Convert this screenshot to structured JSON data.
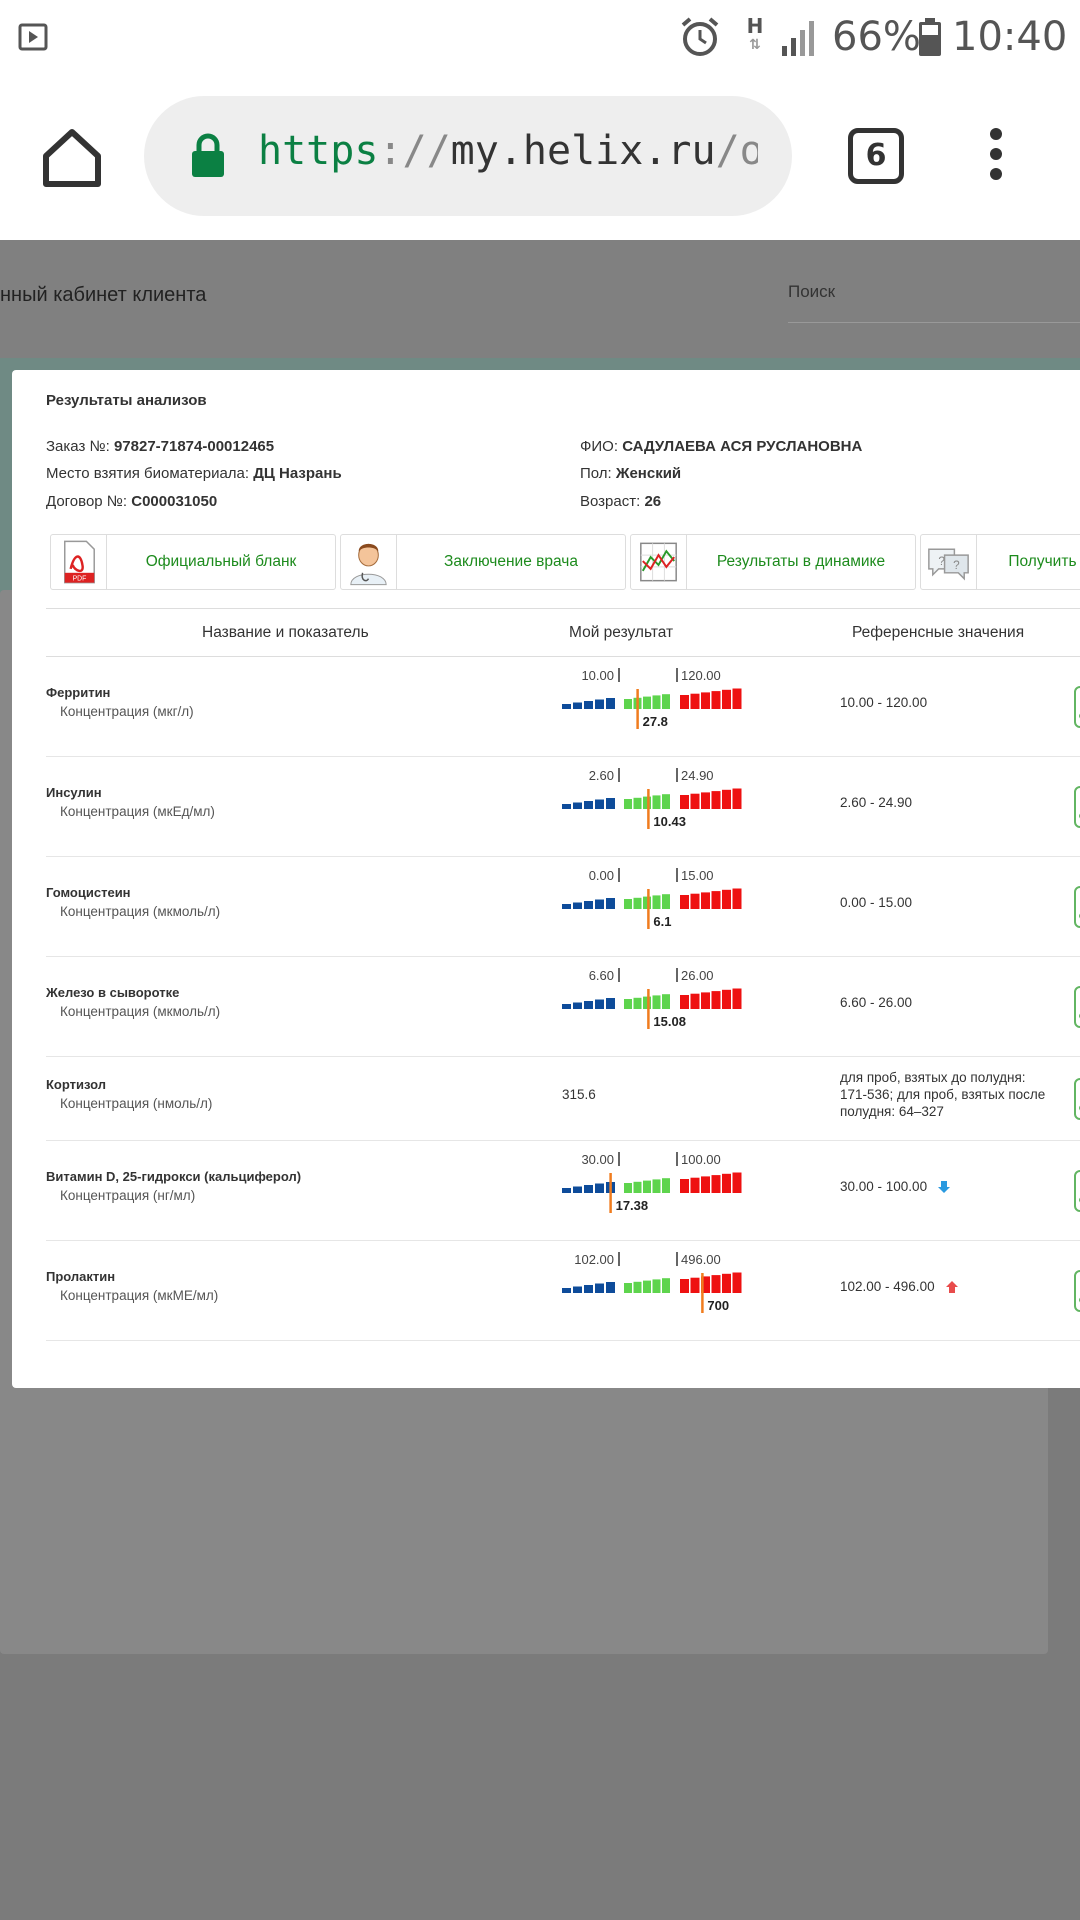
{
  "status_bar": {
    "network": "H",
    "battery_pct": "66%",
    "time": "10:40"
  },
  "browser": {
    "url_scheme": "https",
    "url_sep": "://",
    "url_host": "my.helix.ru",
    "url_path": "/orders",
    "tab_count": "6"
  },
  "background": {
    "page_title": "нный кабинет клиента",
    "search_label": "Поиск"
  },
  "modal": {
    "title": "Результаты анализов",
    "order_label": "Заказ №:",
    "order_value": "97827-71874-00012465",
    "place_label": "Место взятия биоматериала:",
    "place_value": "ДЦ Назрань",
    "contract_label": "Договор №:",
    "contract_value": "С000031050",
    "fio_label": "ФИО:",
    "fio_value": "САДУЛАЕВА АСЯ РУСЛАНОВНА",
    "sex_label": "Пол:",
    "sex_value": "Женский",
    "age_label": "Возраст:",
    "age_value": "26",
    "buttons": [
      {
        "label": "Официальный бланк",
        "icon": "pdf-icon"
      },
      {
        "label": "Заключение врача",
        "icon": "doctor-icon"
      },
      {
        "label": "Результаты в динамике",
        "icon": "chart-icon"
      },
      {
        "label": "Получить к",
        "icon": "chat-icon"
      }
    ],
    "columns": {
      "name": "Название и показатель",
      "result": "Мой результат",
      "reference": "Референсные значения"
    },
    "rows": [
      {
        "name": "Ферритин",
        "unit": "Концентрация (мкг/л)",
        "low": "10.00",
        "high": "120.00",
        "value": "27.8",
        "marker": 0.42,
        "reference": "10.00 - 120.00",
        "flag": ""
      },
      {
        "name": "Инсулин",
        "unit": "Концентрация (мкЕд/мл)",
        "low": "2.60",
        "high": "24.90",
        "value": "10.43",
        "marker": 0.48,
        "reference": "2.60 - 24.90",
        "flag": ""
      },
      {
        "name": "Гомоцистеин",
        "unit": "Концентрация (мкмоль/л)",
        "low": "0.00",
        "high": "15.00",
        "value": "6.1",
        "marker": 0.48,
        "reference": "0.00 - 15.00",
        "flag": ""
      },
      {
        "name": "Железо в сыворотке",
        "unit": "Концентрация (мкмоль/л)",
        "low": "6.60",
        "high": "26.00",
        "value": "15.08",
        "marker": 0.48,
        "reference": "6.60 - 26.00",
        "flag": ""
      },
      {
        "name": "Кортизол",
        "unit": "Концентрация (нмоль/л)",
        "plain": "315.6",
        "reference": "для проб, взятых до полудня: 171-536; для проб, взятых после полудня: 64–327",
        "flag": ""
      },
      {
        "name": "Витамин D, 25-гидрокси (кальциферол)",
        "unit": "Концентрация (нг/мл)",
        "low": "30.00",
        "high": "100.00",
        "value": "17.38",
        "marker": 0.27,
        "reference": "30.00 - 100.00",
        "flag": "down"
      },
      {
        "name": "Пролактин",
        "unit": "Концентрация (мкМЕ/мл)",
        "low": "102.00",
        "high": "496.00",
        "value": "700",
        "marker": 0.78,
        "reference": "102.00 - 496.00",
        "flag": "up"
      }
    ]
  },
  "colors": {
    "accent_green": "#1d8b1d",
    "low_blue": "#0e4c9a",
    "normal_green": "#5ed44d",
    "high_red": "#ee1111",
    "marker_orange": "#f07c1e"
  }
}
